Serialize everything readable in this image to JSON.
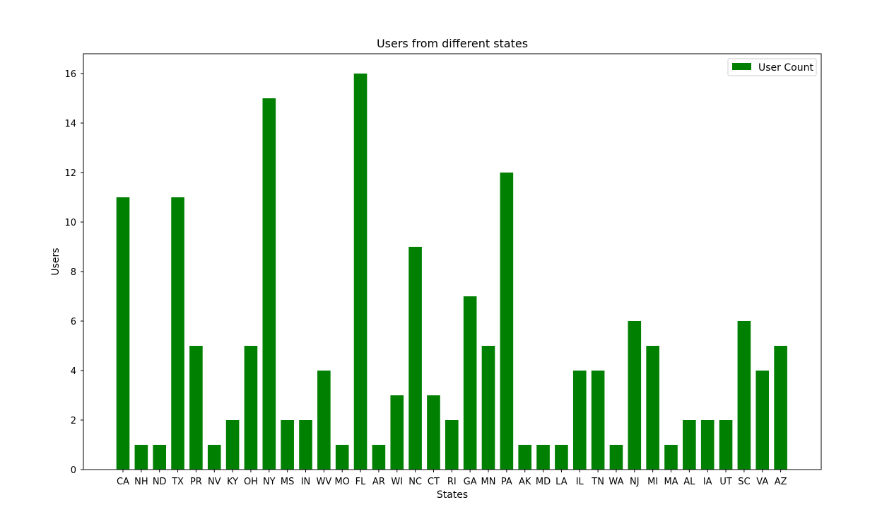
{
  "chart_data": {
    "type": "bar",
    "title": "Users from different states",
    "xlabel": "States",
    "ylabel": "Users",
    "ylim": [
      0,
      16.8
    ],
    "yticks": [
      0,
      2,
      4,
      6,
      8,
      10,
      12,
      14,
      16
    ],
    "grid": false,
    "legend_position": "top-right",
    "series": [
      {
        "name": "User Count",
        "color": "#008000",
        "values": [
          11,
          1,
          1,
          11,
          5,
          1,
          2,
          5,
          15,
          2,
          2,
          4,
          1,
          16,
          1,
          3,
          9,
          3,
          2,
          7,
          5,
          12,
          1,
          1,
          1,
          4,
          4,
          1,
          6,
          5,
          1,
          2,
          2,
          2,
          6,
          4,
          5
        ]
      }
    ],
    "categories": [
      "CA",
      "NH",
      "ND",
      "TX",
      "PR",
      "NV",
      "KY",
      "OH",
      "NY",
      "MS",
      "IN",
      "WV",
      "MO",
      "FL",
      "AR",
      "WI",
      "NC",
      "CT",
      "RI",
      "GA",
      "MN",
      "PA",
      "AK",
      "MD",
      "LA",
      "IL",
      "TN",
      "WA",
      "NJ",
      "MI",
      "MA",
      "AL",
      "IA",
      "UT",
      "SC",
      "VA",
      "AZ"
    ]
  }
}
